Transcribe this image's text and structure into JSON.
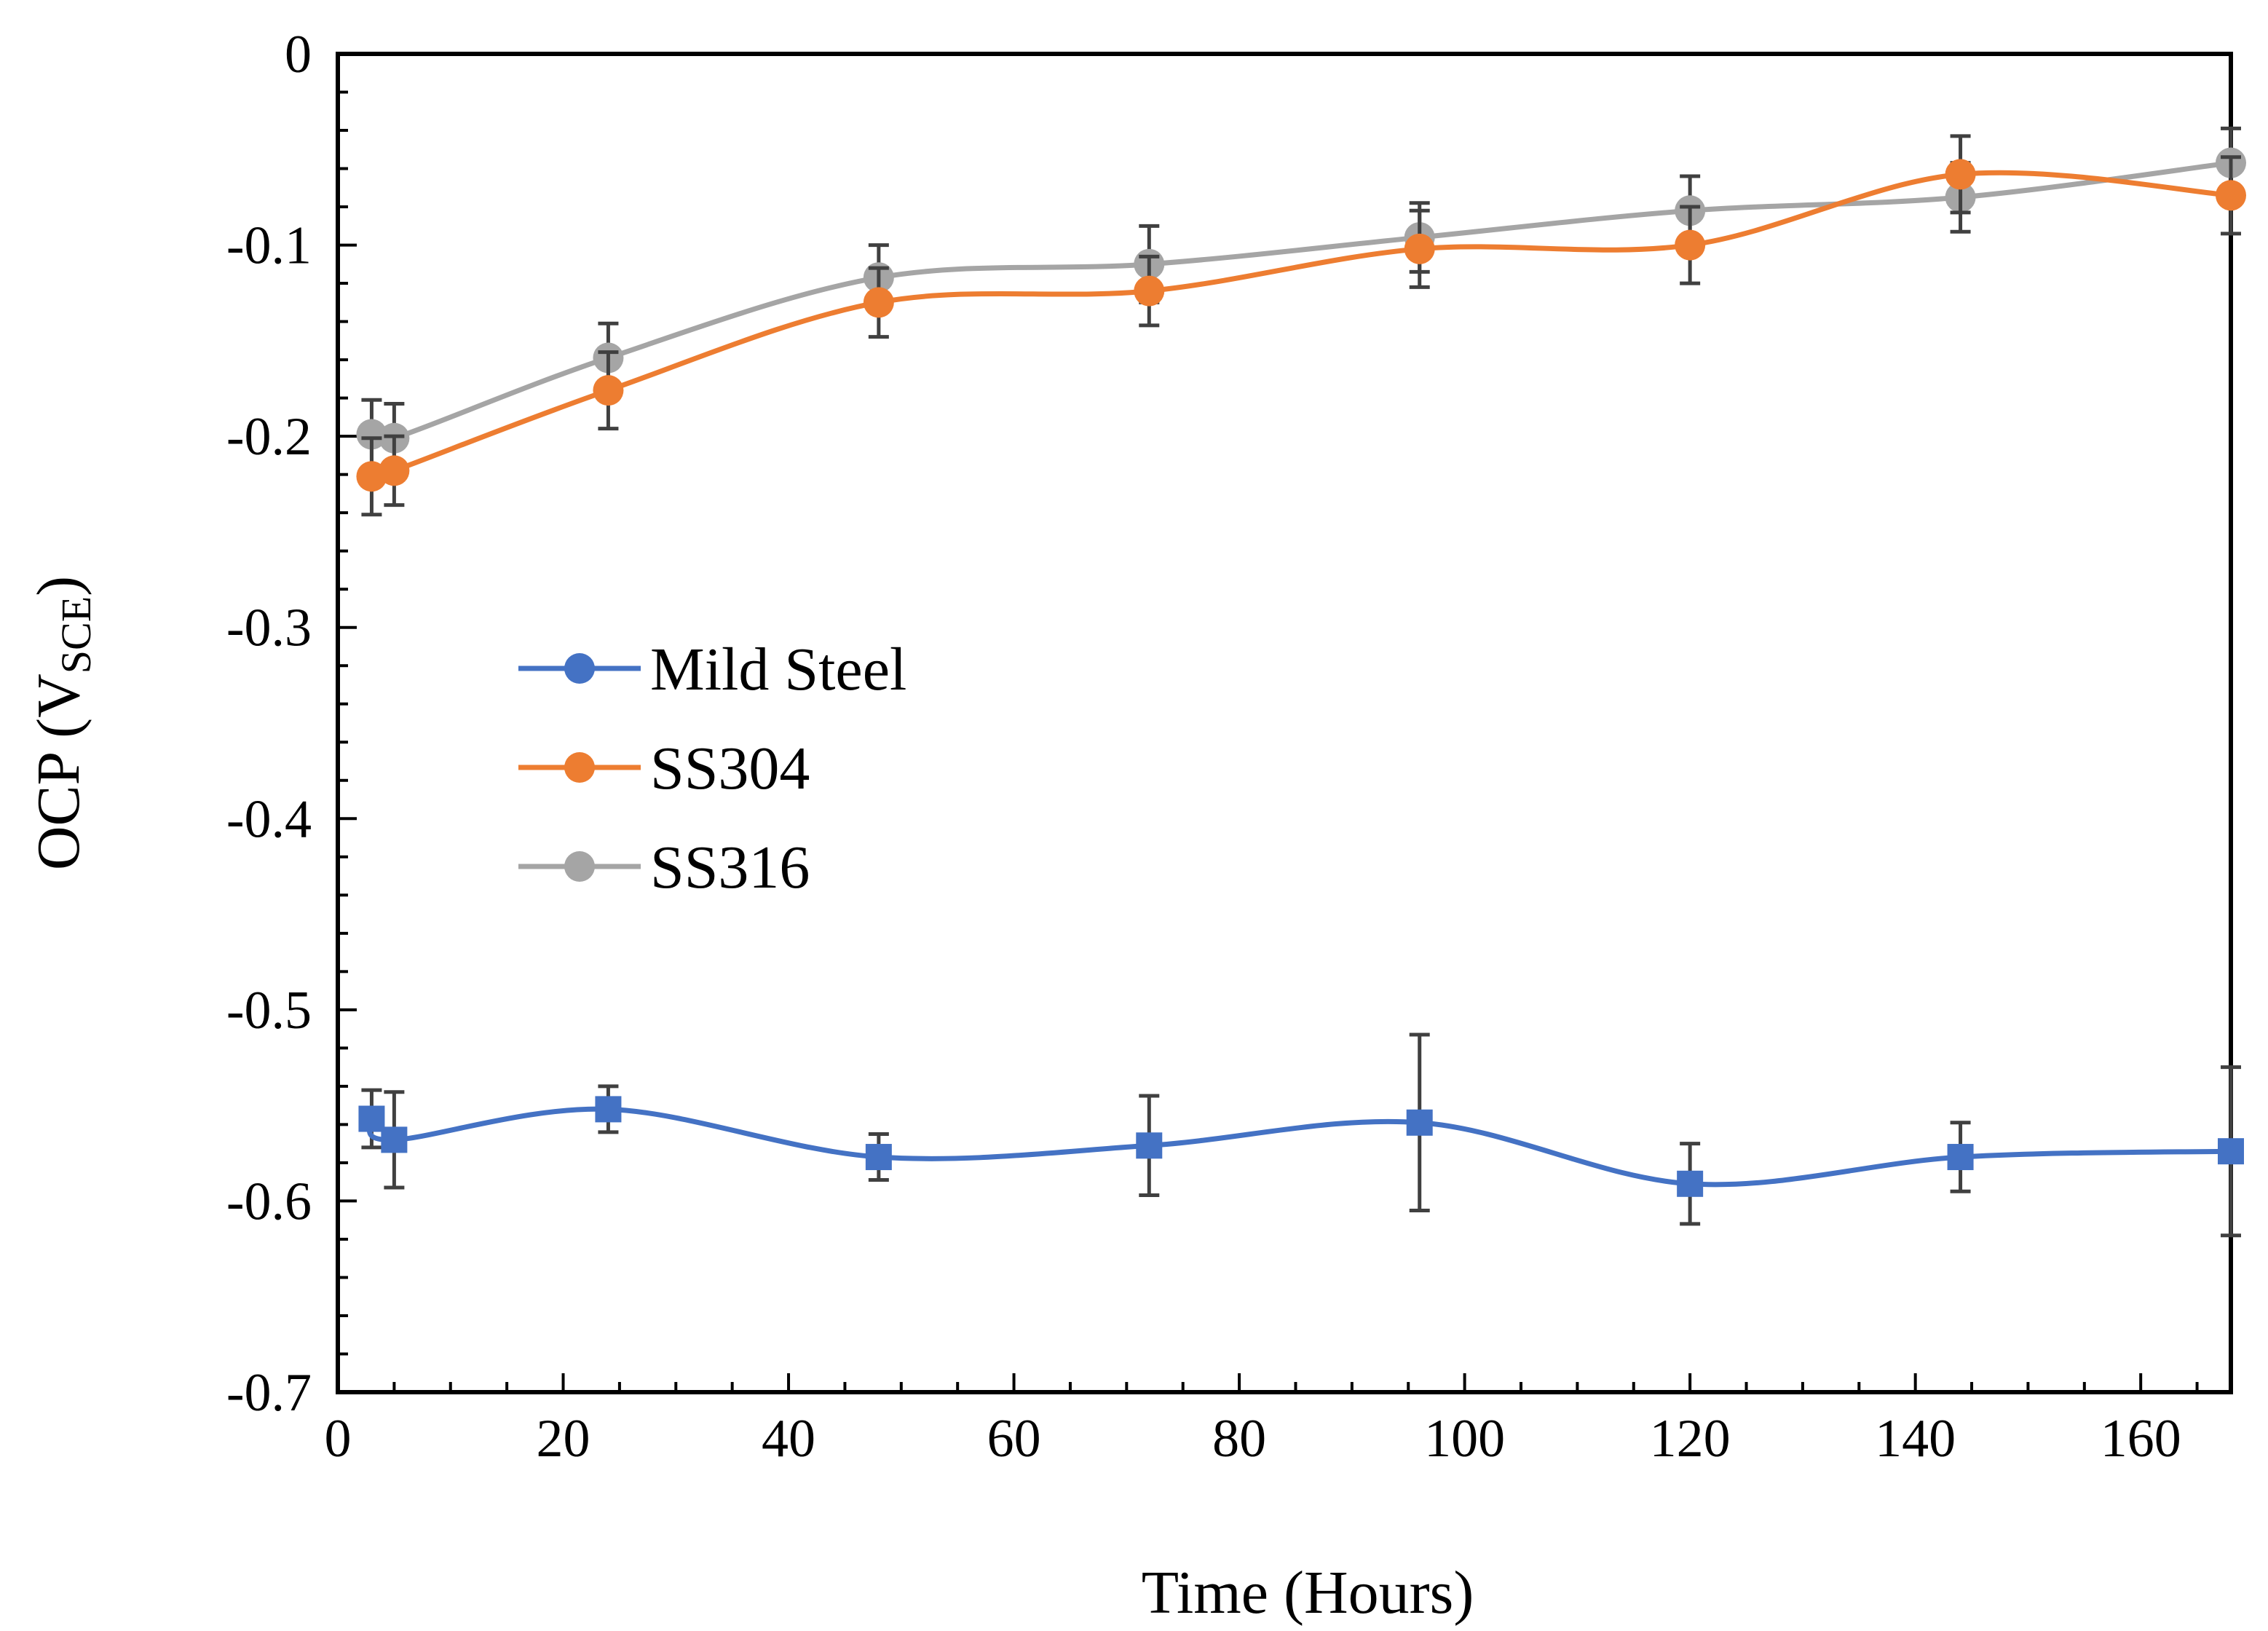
{
  "chart_data": {
    "type": "line",
    "title": "",
    "xlabel": "Time (Hours)",
    "ylabel": {
      "main": "OCP (V",
      "sub": "SCE",
      "close": ")"
    },
    "xlim": [
      0,
      168
    ],
    "ylim": [
      -0.7,
      0
    ],
    "xticks": [
      0,
      20,
      40,
      60,
      80,
      100,
      120,
      140,
      160
    ],
    "yticks": [
      0,
      -0.1,
      -0.2,
      -0.3,
      -0.4,
      -0.5,
      -0.6,
      -0.7
    ],
    "xtick_labels": [
      "0",
      "20",
      "40",
      "60",
      "80",
      "100",
      "120",
      "140",
      "160"
    ],
    "ytick_labels": [
      "0",
      "-0.1",
      "-0.2",
      "-0.3",
      "-0.4",
      "-0.5",
      "-0.6",
      "-0.7"
    ],
    "grid": false,
    "legend_position": "middle-left",
    "x": [
      3,
      5,
      24,
      48,
      72,
      96,
      120,
      144,
      168
    ],
    "series": [
      {
        "name": "Mild Steel",
        "color": "#4472C4",
        "marker": "square",
        "values": [
          -0.557,
          -0.568,
          -0.552,
          -0.577,
          -0.571,
          -0.559,
          -0.591,
          -0.577,
          -0.574
        ],
        "errors": [
          0.015,
          0.025,
          0.012,
          0.012,
          0.026,
          0.046,
          0.021,
          0.018,
          0.044
        ]
      },
      {
        "name": "SS304",
        "color": "#ED7D31",
        "marker": "circle",
        "values": [
          -0.221,
          -0.218,
          -0.176,
          -0.13,
          -0.124,
          -0.102,
          -0.1,
          -0.063,
          -0.074
        ],
        "errors": [
          0.02,
          0.018,
          0.02,
          0.018,
          0.018,
          0.02,
          0.02,
          0.02,
          0.02
        ]
      },
      {
        "name": "SS316",
        "color": "#A5A5A5",
        "marker": "circle",
        "values": [
          -0.199,
          -0.201,
          -0.159,
          -0.117,
          -0.11,
          -0.096,
          -0.082,
          -0.075,
          -0.057
        ],
        "errors": [
          0.018,
          0.018,
          0.018,
          0.017,
          0.02,
          0.018,
          0.018,
          0.018,
          0.018
        ]
      }
    ]
  }
}
